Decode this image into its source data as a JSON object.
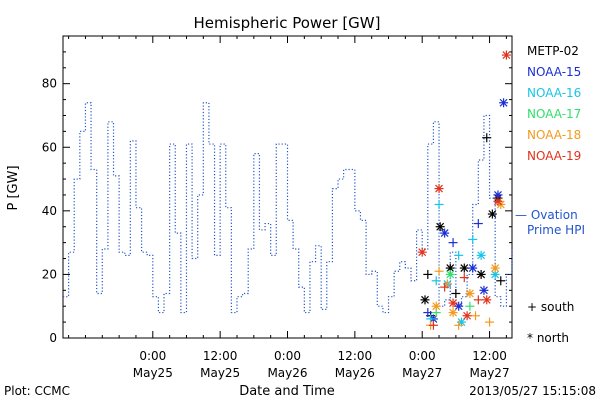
{
  "chart_data": {
    "type": "scatter",
    "title": "Hemispheric Power [GW]",
    "ylabel": "P [GW]",
    "xlabel": "Date and Time",
    "ylim": [
      0,
      95
    ],
    "yticks": [
      0,
      20,
      40,
      60,
      80
    ],
    "xlim": [
      -16,
      64
    ],
    "x_units": "hours from 2013-05-25 00:00 UT",
    "xticks": [
      {
        "x": 0,
        "time": "0:00",
        "date": "May25"
      },
      {
        "x": 12,
        "time": "12:00",
        "date": "May25"
      },
      {
        "x": 24,
        "time": "0:00",
        "date": "May26"
      },
      {
        "x": 36,
        "time": "12:00",
        "date": "May26"
      },
      {
        "x": 48,
        "time": "0:00",
        "date": "May27"
      },
      {
        "x": 60,
        "time": "12:00",
        "date": "May27"
      }
    ],
    "legend": {
      "placement": "right",
      "satellites": [
        {
          "name": "METP-02",
          "color": "#000000"
        },
        {
          "name": "NOAA-15",
          "color": "#1a2fd6"
        },
        {
          "name": "NOAA-16",
          "color": "#19c4e8"
        },
        {
          "name": "NOAA-17",
          "color": "#2fe06a"
        },
        {
          "name": "NOAA-18",
          "color": "#f39a1e"
        },
        {
          "name": "NOAA-19",
          "color": "#e0331c"
        }
      ],
      "ovation_label_1": "— Ovation",
      "ovation_label_2": "Prime HPI",
      "ovation_color": "#2255cc",
      "south_label": "+ south",
      "north_label": "* north"
    },
    "ovation_series": {
      "name": "Ovation Prime HPI",
      "style": "dotted step",
      "x": [
        -16,
        -15,
        -14,
        -13,
        -12,
        -11,
        -10,
        -9,
        -8,
        -7,
        -6,
        -5,
        -4,
        -3,
        -2,
        -1,
        0,
        1,
        2,
        3,
        4,
        5,
        6,
        7,
        8,
        9,
        10,
        11,
        12,
        13,
        14,
        15,
        16,
        17,
        18,
        19,
        20,
        21,
        22,
        23,
        24,
        25,
        26,
        27,
        28,
        29,
        30,
        31,
        32,
        33,
        34,
        35,
        36,
        37,
        38,
        39,
        40,
        41,
        42,
        43,
        44,
        45,
        46,
        47,
        48,
        49,
        50,
        51,
        52,
        53,
        54,
        55,
        56,
        57,
        58,
        59,
        60,
        61,
        62,
        63,
        64
      ],
      "y": [
        13,
        27,
        50,
        65,
        74,
        53,
        14,
        28,
        68,
        51,
        27,
        26,
        62,
        41,
        27,
        26,
        13,
        8,
        14,
        61,
        33,
        8,
        61,
        25,
        45,
        74,
        61,
        26,
        61,
        41,
        8,
        13,
        14,
        28,
        58,
        34,
        36,
        26,
        61,
        61,
        37,
        28,
        16,
        8,
        24,
        29,
        9,
        24,
        47,
        50,
        53,
        53,
        40,
        37,
        20,
        21,
        10,
        8,
        13,
        21,
        24,
        22,
        18,
        34,
        28,
        61,
        68,
        10,
        12,
        27,
        10,
        13,
        20,
        42,
        56,
        70,
        44,
        13,
        10,
        20,
        28
      ]
    },
    "satellite_points": [
      {
        "sat": "METP-02",
        "hemi": "north",
        "x": 48.5,
        "y": 12
      },
      {
        "sat": "METP-02",
        "hemi": "south",
        "x": 49.0,
        "y": 20
      },
      {
        "sat": "METP-02",
        "hemi": "south",
        "x": 49.5,
        "y": 7
      },
      {
        "sat": "METP-02",
        "hemi": "north",
        "x": 51.2,
        "y": 35
      },
      {
        "sat": "METP-02",
        "hemi": "north",
        "x": 53.0,
        "y": 22
      },
      {
        "sat": "METP-02",
        "hemi": "south",
        "x": 54.0,
        "y": 14
      },
      {
        "sat": "METP-02",
        "hemi": "north",
        "x": 55.5,
        "y": 22
      },
      {
        "sat": "METP-02",
        "hemi": "north",
        "x": 58.5,
        "y": 20
      },
      {
        "sat": "METP-02",
        "hemi": "south",
        "x": 59.5,
        "y": 63
      },
      {
        "sat": "METP-02",
        "hemi": "north",
        "x": 60.5,
        "y": 39
      },
      {
        "sat": "METP-02",
        "hemi": "north",
        "x": 61.5,
        "y": 44
      },
      {
        "sat": "METP-02",
        "hemi": "south",
        "x": 62.0,
        "y": 18
      },
      {
        "sat": "NOAA-15",
        "hemi": "south",
        "x": 49.0,
        "y": 8
      },
      {
        "sat": "NOAA-15",
        "hemi": "north",
        "x": 50.0,
        "y": 6
      },
      {
        "sat": "NOAA-15",
        "hemi": "north",
        "x": 52.0,
        "y": 33
      },
      {
        "sat": "NOAA-15",
        "hemi": "south",
        "x": 53.5,
        "y": 30
      },
      {
        "sat": "NOAA-15",
        "hemi": "north",
        "x": 54.5,
        "y": 10
      },
      {
        "sat": "NOAA-15",
        "hemi": "north",
        "x": 57.0,
        "y": 22
      },
      {
        "sat": "NOAA-15",
        "hemi": "south",
        "x": 58.0,
        "y": 36
      },
      {
        "sat": "NOAA-15",
        "hemi": "north",
        "x": 59.0,
        "y": 15
      },
      {
        "sat": "NOAA-15",
        "hemi": "north",
        "x": 61.5,
        "y": 45
      },
      {
        "sat": "NOAA-15",
        "hemi": "north",
        "x": 62.5,
        "y": 74
      },
      {
        "sat": "NOAA-16",
        "hemi": "south",
        "x": 49.5,
        "y": 6
      },
      {
        "sat": "NOAA-16",
        "hemi": "south",
        "x": 50.5,
        "y": 18
      },
      {
        "sat": "NOAA-16",
        "hemi": "south",
        "x": 51.0,
        "y": 42
      },
      {
        "sat": "NOAA-16",
        "hemi": "north",
        "x": 52.5,
        "y": 17
      },
      {
        "sat": "NOAA-16",
        "hemi": "south",
        "x": 54.5,
        "y": 26
      },
      {
        "sat": "NOAA-16",
        "hemi": "north",
        "x": 55.0,
        "y": 5
      },
      {
        "sat": "NOAA-16",
        "hemi": "south",
        "x": 57.0,
        "y": 31
      },
      {
        "sat": "NOAA-16",
        "hemi": "north",
        "x": 58.5,
        "y": 26
      },
      {
        "sat": "NOAA-16",
        "hemi": "north",
        "x": 61.0,
        "y": 20
      },
      {
        "sat": "NOAA-17",
        "hemi": "south",
        "x": 50.5,
        "y": 8
      },
      {
        "sat": "NOAA-17",
        "hemi": "north",
        "x": 53.0,
        "y": 20
      },
      {
        "sat": "NOAA-17",
        "hemi": "south",
        "x": 56.5,
        "y": 10
      },
      {
        "sat": "NOAA-18",
        "hemi": "south",
        "x": 49.5,
        "y": 4
      },
      {
        "sat": "NOAA-18",
        "hemi": "north",
        "x": 50.5,
        "y": 10
      },
      {
        "sat": "NOAA-18",
        "hemi": "south",
        "x": 51.0,
        "y": 21
      },
      {
        "sat": "NOAA-18",
        "hemi": "south",
        "x": 52.5,
        "y": 17
      },
      {
        "sat": "NOAA-18",
        "hemi": "north",
        "x": 53.5,
        "y": 8
      },
      {
        "sat": "NOAA-18",
        "hemi": "south",
        "x": 54.5,
        "y": 4
      },
      {
        "sat": "NOAA-18",
        "hemi": "north",
        "x": 56.5,
        "y": 14
      },
      {
        "sat": "NOAA-18",
        "hemi": "south",
        "x": 57.5,
        "y": 7
      },
      {
        "sat": "NOAA-18",
        "hemi": "south",
        "x": 60.0,
        "y": 5
      },
      {
        "sat": "NOAA-18",
        "hemi": "north",
        "x": 61.0,
        "y": 22
      },
      {
        "sat": "NOAA-18",
        "hemi": "north",
        "x": 62.0,
        "y": 42
      },
      {
        "sat": "NOAA-19",
        "hemi": "north",
        "x": 48.0,
        "y": 27
      },
      {
        "sat": "NOAA-19",
        "hemi": "south",
        "x": 50.0,
        "y": 4
      },
      {
        "sat": "NOAA-19",
        "hemi": "north",
        "x": 51.0,
        "y": 47
      },
      {
        "sat": "NOAA-19",
        "hemi": "south",
        "x": 52.0,
        "y": 16
      },
      {
        "sat": "NOAA-19",
        "hemi": "north",
        "x": 53.5,
        "y": 11
      },
      {
        "sat": "NOAA-19",
        "hemi": "south",
        "x": 55.5,
        "y": 19
      },
      {
        "sat": "NOAA-19",
        "hemi": "north",
        "x": 56.0,
        "y": 7
      },
      {
        "sat": "NOAA-19",
        "hemi": "south",
        "x": 58.0,
        "y": 12
      },
      {
        "sat": "NOAA-19",
        "hemi": "north",
        "x": 59.5,
        "y": 12
      },
      {
        "sat": "NOAA-19",
        "hemi": "north",
        "x": 61.5,
        "y": 43
      },
      {
        "sat": "NOAA-19",
        "hemi": "north",
        "x": 63.0,
        "y": 89
      }
    ]
  },
  "footer": {
    "plot_credit": "Plot: CCMC",
    "timestamp": "2013/05/27 15:15:08"
  }
}
